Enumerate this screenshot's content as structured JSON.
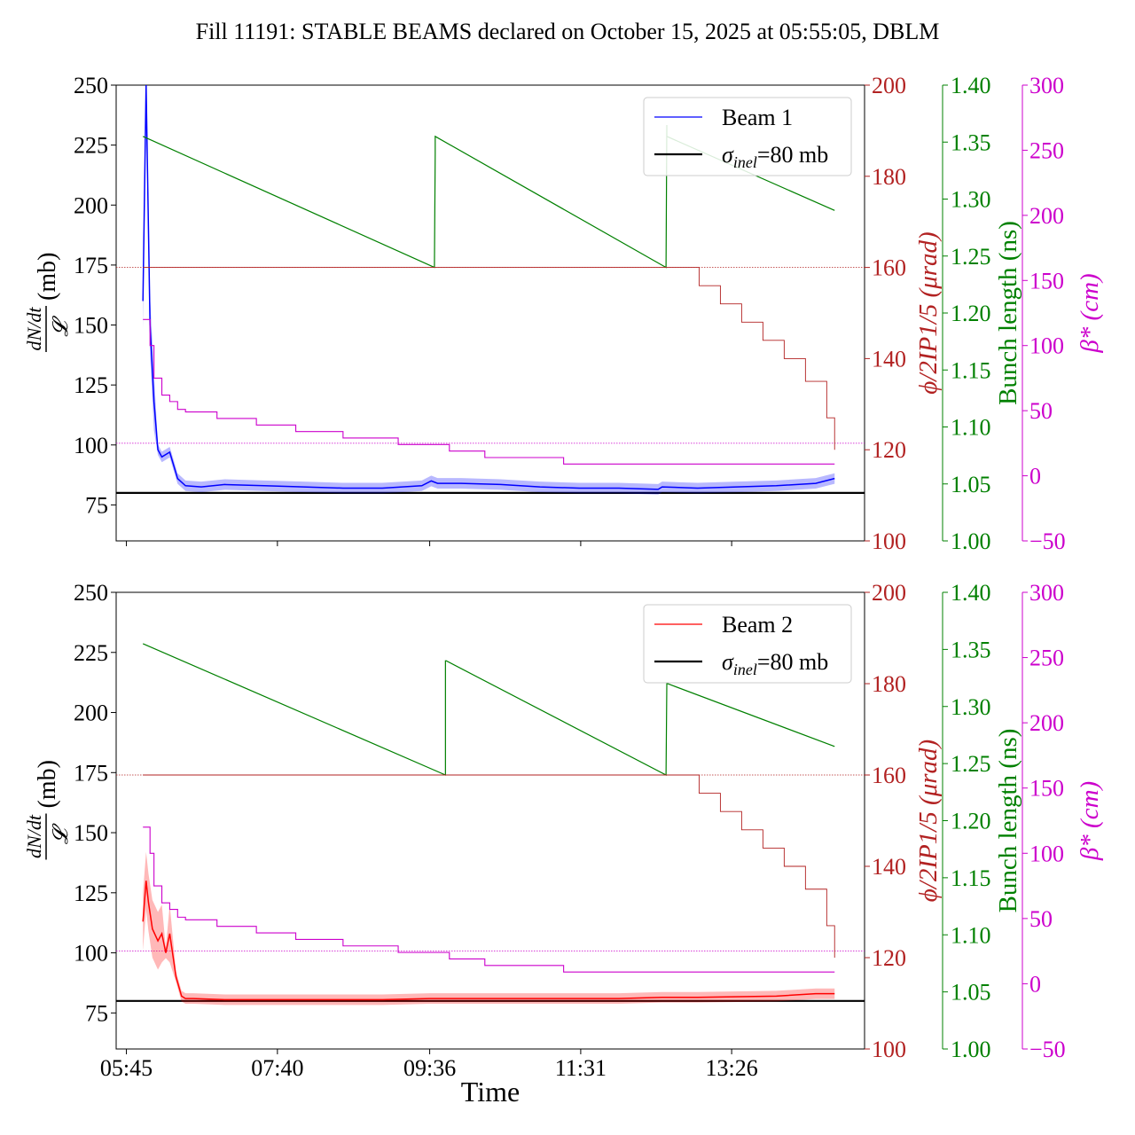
{
  "title": "Fill 11191: STABLE BEAMS declared on October 15, 2025 at 05:55:05, DBLM",
  "xlabel": "Time",
  "colors": {
    "beam1": "#0000ff",
    "beam2": "#ff0000",
    "crossing": "#b22222",
    "bunch": "#008000",
    "beta": "#cc00cc",
    "sigma": "#000000"
  },
  "chart_data": [
    {
      "type": "line",
      "panel": "top",
      "ylabel_left": {
        "num": "dN/dt",
        "den": "𝓛",
        "unit": "(mb)"
      },
      "ylabel_right1": "ϕ/2IP1/5 (μrad)",
      "ylabel_right2": "Bunch length (ns)",
      "ylabel_right3": "β* (cm)",
      "ylim": [
        60,
        250
      ],
      "yticks": [
        "75",
        "100",
        "125",
        "150",
        "175",
        "200",
        "225",
        "250"
      ],
      "ylim_right1": [
        100,
        200
      ],
      "yticks_right1": [
        "100",
        "120",
        "140",
        "160",
        "180",
        "200"
      ],
      "ylim_right2": [
        1.0,
        1.4
      ],
      "yticks_right2": [
        "1.00",
        "1.05",
        "1.10",
        "1.15",
        "1.20",
        "1.25",
        "1.30",
        "1.35",
        "1.40"
      ],
      "ylim_right3": [
        -50,
        300
      ],
      "yticks_right3": [
        "−50",
        "0",
        "50",
        "100",
        "150",
        "200",
        "250",
        "300"
      ],
      "xlim_hours": [
        5.62,
        15.12
      ],
      "xticks": [],
      "legend": {
        "placement": "top-right",
        "entries": [
          {
            "label": "Beam 1",
            "color": "#0000ff"
          },
          {
            "label_main": "σ",
            "label_sub": "inel",
            "label_rest": "=80 mb",
            "color": "#000000"
          }
        ]
      },
      "sigma_inel": 80,
      "series": [
        {
          "name": "Beam 1",
          "axis": "left",
          "x": [
            5.96,
            6.0,
            6.05,
            6.1,
            6.15,
            6.2,
            6.3,
            6.4,
            6.5,
            6.7,
            7.0,
            7.5,
            8.0,
            8.5,
            9.0,
            9.5,
            9.62,
            9.7,
            10.0,
            10.5,
            11.0,
            11.5,
            12.0,
            12.5,
            12.55,
            13.0,
            13.5,
            14.0,
            14.5,
            14.74
          ],
          "values": [
            160,
            250,
            150,
            118,
            98,
            95,
            97,
            86,
            83,
            82.5,
            83.5,
            83,
            82.5,
            82,
            82,
            83,
            85,
            84,
            84,
            83.5,
            82.5,
            82,
            82,
            81.5,
            82.5,
            82,
            82.5,
            83,
            84,
            86
          ]
        },
        {
          "name": "",
          "axis": "right2",
          "x": [
            5.96,
            9.66,
            9.67,
            9.67,
            12.6,
            12.61,
            12.61,
            14.74
          ],
          "values": [
            1.355,
            1.24,
            1.34,
            1.355,
            1.24,
            1.365,
            1.355,
            1.29
          ]
        },
        {
          "name": "",
          "axis": "right1",
          "x": [
            5.96,
            12.72,
            13.02,
            13.29,
            13.56,
            13.83,
            14.1,
            14.37,
            14.64,
            14.74
          ],
          "values": [
            160,
            160,
            156,
            152,
            148,
            144,
            140,
            135,
            127,
            120
          ]
        },
        {
          "name": "",
          "axis": "right3",
          "x": [
            5.96,
            6.0,
            6.05,
            6.1,
            6.2,
            6.3,
            6.4,
            6.5,
            6.9,
            7.4,
            7.9,
            8.5,
            9.2,
            9.85,
            10.3,
            11.3,
            14.74
          ],
          "values": [
            120,
            120,
            100,
            75,
            62,
            57,
            51,
            49,
            44,
            39,
            34,
            29,
            24,
            19,
            14,
            9,
            9
          ]
        }
      ]
    },
    {
      "type": "line",
      "panel": "bottom",
      "ylabel_left": {
        "num": "dN/dt",
        "den": "𝓛",
        "unit": "(mb)"
      },
      "ylabel_right1": "ϕ/2IP1/5 (μrad)",
      "ylabel_right2": "Bunch length (ns)",
      "ylabel_right3": "β* (cm)",
      "ylim": [
        60,
        250
      ],
      "yticks": [
        "75",
        "100",
        "125",
        "150",
        "175",
        "200",
        "225",
        "250"
      ],
      "ylim_right1": [
        100,
        200
      ],
      "yticks_right1": [
        "100",
        "120",
        "140",
        "160",
        "180",
        "200"
      ],
      "ylim_right2": [
        1.0,
        1.4
      ],
      "yticks_right2": [
        "1.00",
        "1.05",
        "1.10",
        "1.15",
        "1.20",
        "1.25",
        "1.30",
        "1.35",
        "1.40"
      ],
      "ylim_right3": [
        -50,
        300
      ],
      "yticks_right3": [
        "−50",
        "0",
        "50",
        "100",
        "150",
        "200",
        "250",
        "300"
      ],
      "xlim_hours": [
        5.62,
        15.12
      ],
      "xticks": [
        "05:45",
        "07:40",
        "09:36",
        "11:31",
        "13:26"
      ],
      "xtick_hours": [
        5.75,
        7.667,
        9.6,
        11.517,
        13.433
      ],
      "legend": {
        "placement": "top-right",
        "entries": [
          {
            "label": "Beam 2",
            "color": "#ff0000"
          },
          {
            "label_main": "σ",
            "label_sub": "inel",
            "label_rest": "=80 mb",
            "color": "#000000"
          }
        ]
      },
      "sigma_inel": 80,
      "series": [
        {
          "name": "Beam 2",
          "axis": "left",
          "x": [
            5.96,
            6.0,
            6.03,
            6.08,
            6.15,
            6.2,
            6.25,
            6.3,
            6.38,
            6.45,
            6.5,
            6.6,
            7.0,
            8.0,
            9.0,
            9.6,
            10.0,
            11.0,
            12.0,
            12.55,
            13.0,
            14.0,
            14.5,
            14.74
          ],
          "values": [
            113,
            130,
            121,
            110,
            105,
            108,
            100,
            108,
            90,
            82,
            81,
            81,
            80.5,
            80.5,
            80.5,
            81,
            81,
            81,
            81,
            81.5,
            81.5,
            82,
            83,
            83
          ]
        },
        {
          "name": "",
          "axis": "right2",
          "x": [
            5.96,
            9.8,
            9.8,
            9.81,
            12.6,
            12.61,
            12.62,
            14.74
          ],
          "values": [
            1.355,
            1.24,
            1.34,
            1.34,
            1.24,
            1.32,
            1.32,
            1.265
          ]
        },
        {
          "name": "",
          "axis": "right1",
          "x": [
            5.96,
            12.72,
            13.02,
            13.29,
            13.56,
            13.83,
            14.1,
            14.37,
            14.64,
            14.74
          ],
          "values": [
            160,
            160,
            156,
            152,
            148,
            144,
            140,
            135,
            127,
            120
          ]
        },
        {
          "name": "",
          "axis": "right3",
          "x": [
            5.96,
            6.0,
            6.05,
            6.1,
            6.2,
            6.3,
            6.4,
            6.5,
            6.9,
            7.4,
            7.9,
            8.5,
            9.2,
            9.85,
            10.3,
            11.3,
            14.74
          ],
          "values": [
            120,
            120,
            100,
            75,
            62,
            57,
            51,
            49,
            44,
            39,
            34,
            29,
            24,
            19,
            14,
            9,
            9
          ]
        }
      ]
    }
  ]
}
